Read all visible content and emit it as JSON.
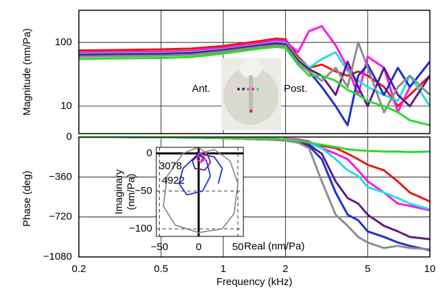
{
  "chart_data": [
    {
      "type": "line",
      "ylabel": "Magnitude (nm/Pa)",
      "log_x": true,
      "log_y": true,
      "grid": true,
      "xlim": [
        0.2,
        10
      ],
      "xticks": [
        0.2,
        0.5,
        1,
        2,
        5,
        10
      ],
      "ylim": [
        3.7,
        320
      ],
      "yticks": [
        10,
        100
      ],
      "annotations": [
        "Ant.",
        "Post."
      ],
      "x": [
        0.2,
        0.3,
        0.5,
        0.7,
        1,
        1.5,
        1.8,
        2,
        2.3,
        2.6,
        3,
        3.5,
        4,
        4.5,
        5,
        6,
        7,
        8,
        10
      ],
      "series": [
        {
          "color": "#e8170f",
          "values": [
            75,
            76,
            78,
            80,
            88,
            105,
            115,
            112,
            60,
            40,
            45,
            35,
            30,
            35,
            30,
            20,
            10,
            15,
            30
          ]
        },
        {
          "color": "#ff16e8",
          "values": [
            70,
            71,
            72,
            74,
            82,
            98,
            108,
            105,
            70,
            150,
            180,
            90,
            40,
            15,
            60,
            40,
            8,
            20,
            50
          ]
        },
        {
          "color": "#22e0e0",
          "values": [
            66,
            67,
            68,
            70,
            78,
            92,
            100,
            98,
            55,
            40,
            55,
            70,
            35,
            25,
            20,
            15,
            12,
            30,
            10
          ]
        },
        {
          "color": "#1a2fd6",
          "values": [
            62,
            63,
            64,
            66,
            74,
            88,
            95,
            92,
            50,
            35,
            20,
            10,
            5,
            30,
            45,
            15,
            40,
            20,
            50
          ]
        },
        {
          "color": "#5b1a86",
          "values": [
            64,
            65,
            66,
            68,
            76,
            90,
            97,
            94,
            52,
            38,
            30,
            15,
            50,
            20,
            10,
            40,
            15,
            10,
            30
          ]
        },
        {
          "color": "#8c8c8c",
          "values": [
            60,
            61,
            62,
            64,
            72,
            85,
            90,
            88,
            48,
            35,
            25,
            40,
            20,
            100,
            40,
            8,
            20,
            30,
            15
          ]
        },
        {
          "color": "#2ed82e",
          "values": [
            55,
            56,
            57,
            59,
            67,
            80,
            85,
            82,
            45,
            30,
            30,
            25,
            18,
            15,
            12,
            10,
            8,
            6,
            5
          ]
        }
      ]
    },
    {
      "type": "line",
      "ylabel": "Phase (deg)",
      "xlabel": "Frequency (kHz)",
      "log_x": true,
      "grid": true,
      "xlim": [
        0.2,
        10
      ],
      "xticks": [
        0.2,
        0.5,
        1,
        2,
        5,
        10
      ],
      "ylim": [
        -1080,
        0
      ],
      "yticks": [
        0,
        {
          "value": -360,
          "label": "−360"
        },
        {
          "value": -720,
          "label": "−720"
        },
        {
          "value": -1080,
          "label": "−1080"
        }
      ],
      "x": [
        0.2,
        0.3,
        0.5,
        0.7,
        1,
        1.5,
        1.8,
        2,
        2.3,
        2.6,
        3,
        3.5,
        4,
        4.5,
        5,
        6,
        7,
        8,
        10
      ],
      "series": [
        {
          "color": "#e8170f",
          "values": [
            0,
            0,
            -2,
            -5,
            -10,
            -20,
            -25,
            -30,
            -40,
            -60,
            -80,
            -100,
            -150,
            -200,
            -250,
            -300,
            -400,
            -500,
            -580
          ]
        },
        {
          "color": "#ff16e8",
          "values": [
            0,
            0,
            -2,
            -5,
            -10,
            -20,
            -25,
            -15,
            -20,
            -40,
            -100,
            -150,
            -200,
            -300,
            -400,
            -500,
            -600,
            -620,
            -660
          ]
        },
        {
          "color": "#22e0e0",
          "values": [
            0,
            0,
            -2,
            -5,
            -10,
            -20,
            -25,
            -30,
            -40,
            -60,
            -100,
            -200,
            -300,
            -350,
            -450,
            -500,
            -550,
            -600,
            -650
          ]
        },
        {
          "color": "#1a2fd6",
          "values": [
            0,
            0,
            -2,
            -5,
            -10,
            -20,
            -25,
            -30,
            -50,
            -80,
            -200,
            -500,
            -700,
            -750,
            -850,
            -900,
            -950,
            -980,
            -1020
          ]
        },
        {
          "color": "#5b1a86",
          "values": [
            0,
            0,
            -2,
            -5,
            -10,
            -20,
            -25,
            -30,
            -50,
            -70,
            -150,
            -400,
            -550,
            -600,
            -700,
            -800,
            -850,
            -900,
            -920
          ]
        },
        {
          "color": "#8c8c8c",
          "values": [
            0,
            0,
            -2,
            -5,
            -10,
            -20,
            -25,
            -30,
            -50,
            -100,
            -400,
            -700,
            -800,
            -900,
            -950,
            -1000,
            -980,
            -1000,
            -1010
          ]
        },
        {
          "color": "#2ed82e",
          "values": [
            0,
            0,
            -1,
            -3,
            -6,
            -10,
            -15,
            -20,
            -30,
            -50,
            -70,
            -90,
            -110,
            -120,
            -125,
            -130,
            -130,
            -135,
            -130
          ]
        }
      ]
    },
    {
      "type": "line",
      "xlabel": "Real (nm/Pa)",
      "ylabel": [
        "Imaginary",
        "(nm/Pa)"
      ],
      "grid": true,
      "xlim": [
        -54,
        57
      ],
      "xticks": [
        {
          "value": -50,
          "label": "−50"
        },
        0,
        50
      ],
      "ylim": [
        -110,
        8
      ],
      "yticks": [
        0,
        {
          "value": -50,
          "label": "−50"
        },
        {
          "value": -100,
          "label": "−100"
        }
      ],
      "annotations": [
        "3078",
        "4922"
      ],
      "series": [
        {
          "color": "#8c8c8c",
          "x": [
            0,
            20,
            40,
            50,
            45,
            30,
            0,
            -30,
            -45,
            -40,
            -20,
            0,
            10,
            0
          ],
          "values": [
            0,
            5,
            -10,
            -40,
            -80,
            -100,
            -105,
            -95,
            -70,
            -30,
            0,
            8,
            0,
            -5
          ]
        },
        {
          "color": "#1a2fd6",
          "x": [
            0,
            10,
            15,
            5,
            -15,
            -25,
            -20,
            0,
            20,
            30,
            25
          ],
          "values": [
            0,
            -10,
            -30,
            -50,
            -55,
            -40,
            -20,
            0,
            -5,
            -20,
            -40
          ]
        },
        {
          "color": "#5b1a86",
          "x": [
            0,
            12,
            15,
            8,
            -5,
            -8,
            0,
            6,
            3
          ],
          "values": [
            0,
            -3,
            -12,
            -22,
            -20,
            -10,
            -2,
            -6,
            -10
          ]
        },
        {
          "color": "#ff16e8",
          "x": [
            0,
            6,
            8,
            3,
            -2,
            0
          ],
          "values": [
            0,
            -2,
            -8,
            -12,
            -8,
            0
          ]
        }
      ]
    }
  ]
}
